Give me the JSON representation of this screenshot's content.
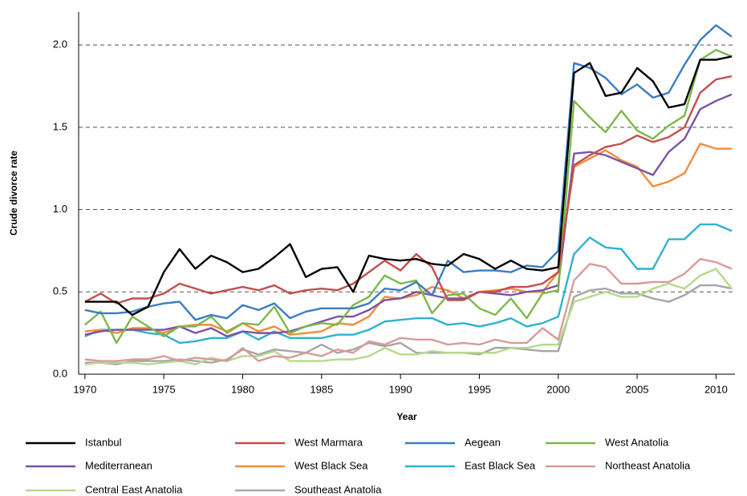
{
  "chart_data": {
    "type": "line",
    "x_label": "Year",
    "y_label": "Crude divorce rate",
    "x": [
      1970,
      1971,
      1972,
      1973,
      1974,
      1975,
      1976,
      1977,
      1978,
      1979,
      1980,
      1981,
      1982,
      1983,
      1984,
      1985,
      1986,
      1987,
      1988,
      1989,
      1990,
      1991,
      1992,
      1993,
      1994,
      1995,
      1996,
      1997,
      1998,
      1999,
      2000,
      2001,
      2002,
      2003,
      2004,
      2005,
      2006,
      2007,
      2008,
      2009,
      2010,
      2011
    ],
    "xlim": [
      1969.6,
      2011.2
    ],
    "xticks": [
      1970,
      1975,
      1980,
      1985,
      1990,
      1995,
      2000,
      2005,
      2010
    ],
    "ylim": [
      0,
      2.2
    ],
    "yticks": [
      {
        "value": 0,
        "label": "0.0"
      },
      {
        "value": 0.5,
        "label": "0.5"
      },
      {
        "value": 1,
        "label": "1.0"
      },
      {
        "value": 1.5,
        "label": "1.5"
      },
      {
        "value": 2,
        "label": "2.0"
      }
    ],
    "grid": true,
    "legend": "bottom",
    "series": [
      {
        "name": "Istanbul",
        "color": "#000000",
        "values": [
          0.44,
          0.44,
          0.44,
          0.36,
          0.41,
          0.62,
          0.76,
          0.64,
          0.72,
          0.68,
          0.62,
          0.64,
          0.71,
          0.79,
          0.59,
          0.64,
          0.65,
          0.5,
          0.72,
          0.7,
          0.69,
          0.7,
          0.67,
          0.66,
          0.73,
          0.7,
          0.64,
          0.69,
          0.64,
          0.63,
          0.65,
          1.83,
          1.89,
          1.69,
          1.71,
          1.86,
          1.78,
          1.62,
          1.64,
          1.91,
          1.91,
          1.93
        ]
      },
      {
        "name": "West Marmara",
        "color": "#c0504d",
        "values": [
          0.44,
          0.49,
          0.43,
          0.46,
          0.46,
          0.49,
          0.55,
          0.52,
          0.49,
          0.51,
          0.53,
          0.51,
          0.54,
          0.49,
          0.51,
          0.52,
          0.51,
          0.55,
          0.62,
          0.69,
          0.63,
          0.73,
          0.65,
          0.45,
          0.45,
          0.5,
          0.5,
          0.53,
          0.53,
          0.55,
          0.62,
          1.27,
          1.33,
          1.38,
          1.4,
          1.45,
          1.41,
          1.44,
          1.5,
          1.71,
          1.79,
          1.81
        ]
      },
      {
        "name": "Aegean",
        "color": "#3a7dc2",
        "values": [
          0.39,
          0.37,
          0.37,
          0.38,
          0.41,
          0.43,
          0.44,
          0.33,
          0.36,
          0.34,
          0.42,
          0.39,
          0.43,
          0.34,
          0.38,
          0.4,
          0.4,
          0.4,
          0.43,
          0.52,
          0.51,
          0.56,
          0.48,
          0.69,
          0.62,
          0.63,
          0.63,
          0.62,
          0.66,
          0.65,
          0.75,
          1.89,
          1.86,
          1.8,
          1.7,
          1.76,
          1.68,
          1.71,
          1.88,
          2.03,
          2.12,
          2.05
        ]
      },
      {
        "name": "West Anatolia",
        "color": "#7cb84a",
        "values": [
          0.3,
          0.38,
          0.19,
          0.35,
          0.29,
          0.23,
          0.29,
          0.29,
          0.35,
          0.25,
          0.31,
          0.3,
          0.41,
          0.25,
          0.29,
          0.31,
          0.3,
          0.42,
          0.47,
          0.6,
          0.55,
          0.57,
          0.37,
          0.48,
          0.49,
          0.4,
          0.36,
          0.46,
          0.34,
          0.49,
          0.51,
          1.66,
          1.56,
          1.47,
          1.6,
          1.48,
          1.43,
          1.51,
          1.57,
          1.91,
          1.97,
          1.93
        ]
      },
      {
        "name": "Mediterranean",
        "color": "#7b52a6",
        "values": [
          0.24,
          0.26,
          0.27,
          0.27,
          0.27,
          0.27,
          0.29,
          0.25,
          0.28,
          0.23,
          0.26,
          0.25,
          0.25,
          0.26,
          0.29,
          0.32,
          0.35,
          0.35,
          0.39,
          0.45,
          0.46,
          0.5,
          0.48,
          0.46,
          0.46,
          0.5,
          0.49,
          0.48,
          0.5,
          0.51,
          0.54,
          1.34,
          1.35,
          1.33,
          1.29,
          1.25,
          1.21,
          1.35,
          1.43,
          1.61,
          1.66,
          1.7
        ]
      },
      {
        "name": "West Black Sea",
        "color": "#f28c3c",
        "values": [
          0.26,
          0.27,
          0.25,
          0.28,
          0.28,
          0.25,
          0.29,
          0.3,
          0.3,
          0.26,
          0.31,
          0.26,
          0.29,
          0.24,
          0.25,
          0.26,
          0.31,
          0.3,
          0.35,
          0.47,
          0.46,
          0.48,
          0.53,
          0.51,
          0.46,
          0.5,
          0.51,
          0.52,
          0.5,
          0.5,
          0.62,
          1.26,
          1.31,
          1.36,
          1.3,
          1.26,
          1.14,
          1.17,
          1.22,
          1.4,
          1.37,
          1.37
        ]
      },
      {
        "name": "East Black Sea",
        "color": "#2fb1d0",
        "values": [
          0.23,
          0.27,
          0.27,
          0.27,
          0.25,
          0.24,
          0.19,
          0.2,
          0.22,
          0.22,
          0.26,
          0.21,
          0.26,
          0.22,
          0.22,
          0.22,
          0.24,
          0.24,
          0.27,
          0.32,
          0.33,
          0.34,
          0.34,
          0.3,
          0.31,
          0.29,
          0.31,
          0.34,
          0.29,
          0.31,
          0.35,
          0.73,
          0.83,
          0.77,
          0.76,
          0.64,
          0.64,
          0.82,
          0.82,
          0.91,
          0.91,
          0.87
        ]
      },
      {
        "name": "Northeast Anatolia",
        "color": "#d99a9a",
        "values": [
          0.09,
          0.08,
          0.08,
          0.09,
          0.09,
          0.11,
          0.08,
          0.1,
          0.09,
          0.08,
          0.16,
          0.08,
          0.11,
          0.1,
          0.13,
          0.11,
          0.15,
          0.13,
          0.2,
          0.18,
          0.22,
          0.21,
          0.21,
          0.18,
          0.19,
          0.18,
          0.21,
          0.19,
          0.19,
          0.28,
          0.21,
          0.57,
          0.67,
          0.65,
          0.55,
          0.55,
          0.56,
          0.56,
          0.61,
          0.7,
          0.68,
          0.64
        ]
      },
      {
        "name": "Central East Anatolia",
        "color": "#b5d98a",
        "values": [
          0.06,
          0.07,
          0.07,
          0.07,
          0.06,
          0.07,
          0.08,
          0.06,
          0.1,
          0.08,
          0.11,
          0.11,
          0.14,
          0.08,
          0.08,
          0.08,
          0.09,
          0.09,
          0.11,
          0.16,
          0.12,
          0.12,
          0.14,
          0.13,
          0.13,
          0.13,
          0.13,
          0.16,
          0.16,
          0.18,
          0.18,
          0.44,
          0.47,
          0.5,
          0.47,
          0.47,
          0.52,
          0.55,
          0.52,
          0.6,
          0.64,
          0.52
        ]
      },
      {
        "name": "Southeast Anatolia",
        "color": "#a6a6a6",
        "values": [
          0.07,
          0.07,
          0.06,
          0.08,
          0.08,
          0.08,
          0.09,
          0.08,
          0.07,
          0.09,
          0.15,
          0.12,
          0.15,
          0.14,
          0.13,
          0.18,
          0.13,
          0.15,
          0.19,
          0.17,
          0.19,
          0.13,
          0.13,
          0.13,
          0.13,
          0.12,
          0.16,
          0.16,
          0.15,
          0.14,
          0.14,
          0.47,
          0.51,
          0.52,
          0.49,
          0.49,
          0.46,
          0.44,
          0.48,
          0.54,
          0.54,
          0.52
        ]
      }
    ]
  }
}
